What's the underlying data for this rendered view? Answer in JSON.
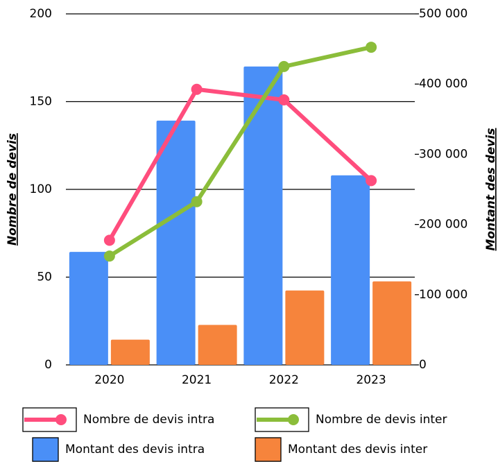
{
  "chart_data": {
    "type": "bar",
    "categories": [
      "2020",
      "2021",
      "2022",
      "2023"
    ],
    "ylabel": "Nombre de devis",
    "y2label": "Montant des devis",
    "ylim": [
      0,
      200
    ],
    "yticks": [
      0,
      50,
      100,
      150,
      200
    ],
    "y2lim": [
      0,
      500000
    ],
    "y2ticks": [
      0,
      {
        "value": 100000,
        "label": "100 000"
      },
      {
        "value": 200000,
        "label": "200 000"
      },
      {
        "value": 300000,
        "label": "300 000"
      },
      {
        "value": 400000,
        "label": "400 000"
      },
      {
        "value": 500000,
        "label": "500 000"
      }
    ],
    "grid": true,
    "series": [
      {
        "name": "Nombre de devis intra",
        "type": "line",
        "color": "#ff4d7d",
        "values": [
          71,
          157,
          151,
          105
        ]
      },
      {
        "name": "Nombre de devis inter",
        "type": "line",
        "color": "#8bbd3a",
        "values": [
          62,
          93,
          170,
          181
        ]
      },
      {
        "name": "Montant des devis intra",
        "type": "bar",
        "axis": "y2",
        "color": "#4a8ff7",
        "values": [
          161000,
          348000,
          425000,
          270000
        ]
      },
      {
        "name": "Montant des devis inter",
        "type": "bar",
        "axis": "y2",
        "color": "#f6843c",
        "values": [
          36000,
          57000,
          106000,
          119000
        ]
      }
    ]
  }
}
